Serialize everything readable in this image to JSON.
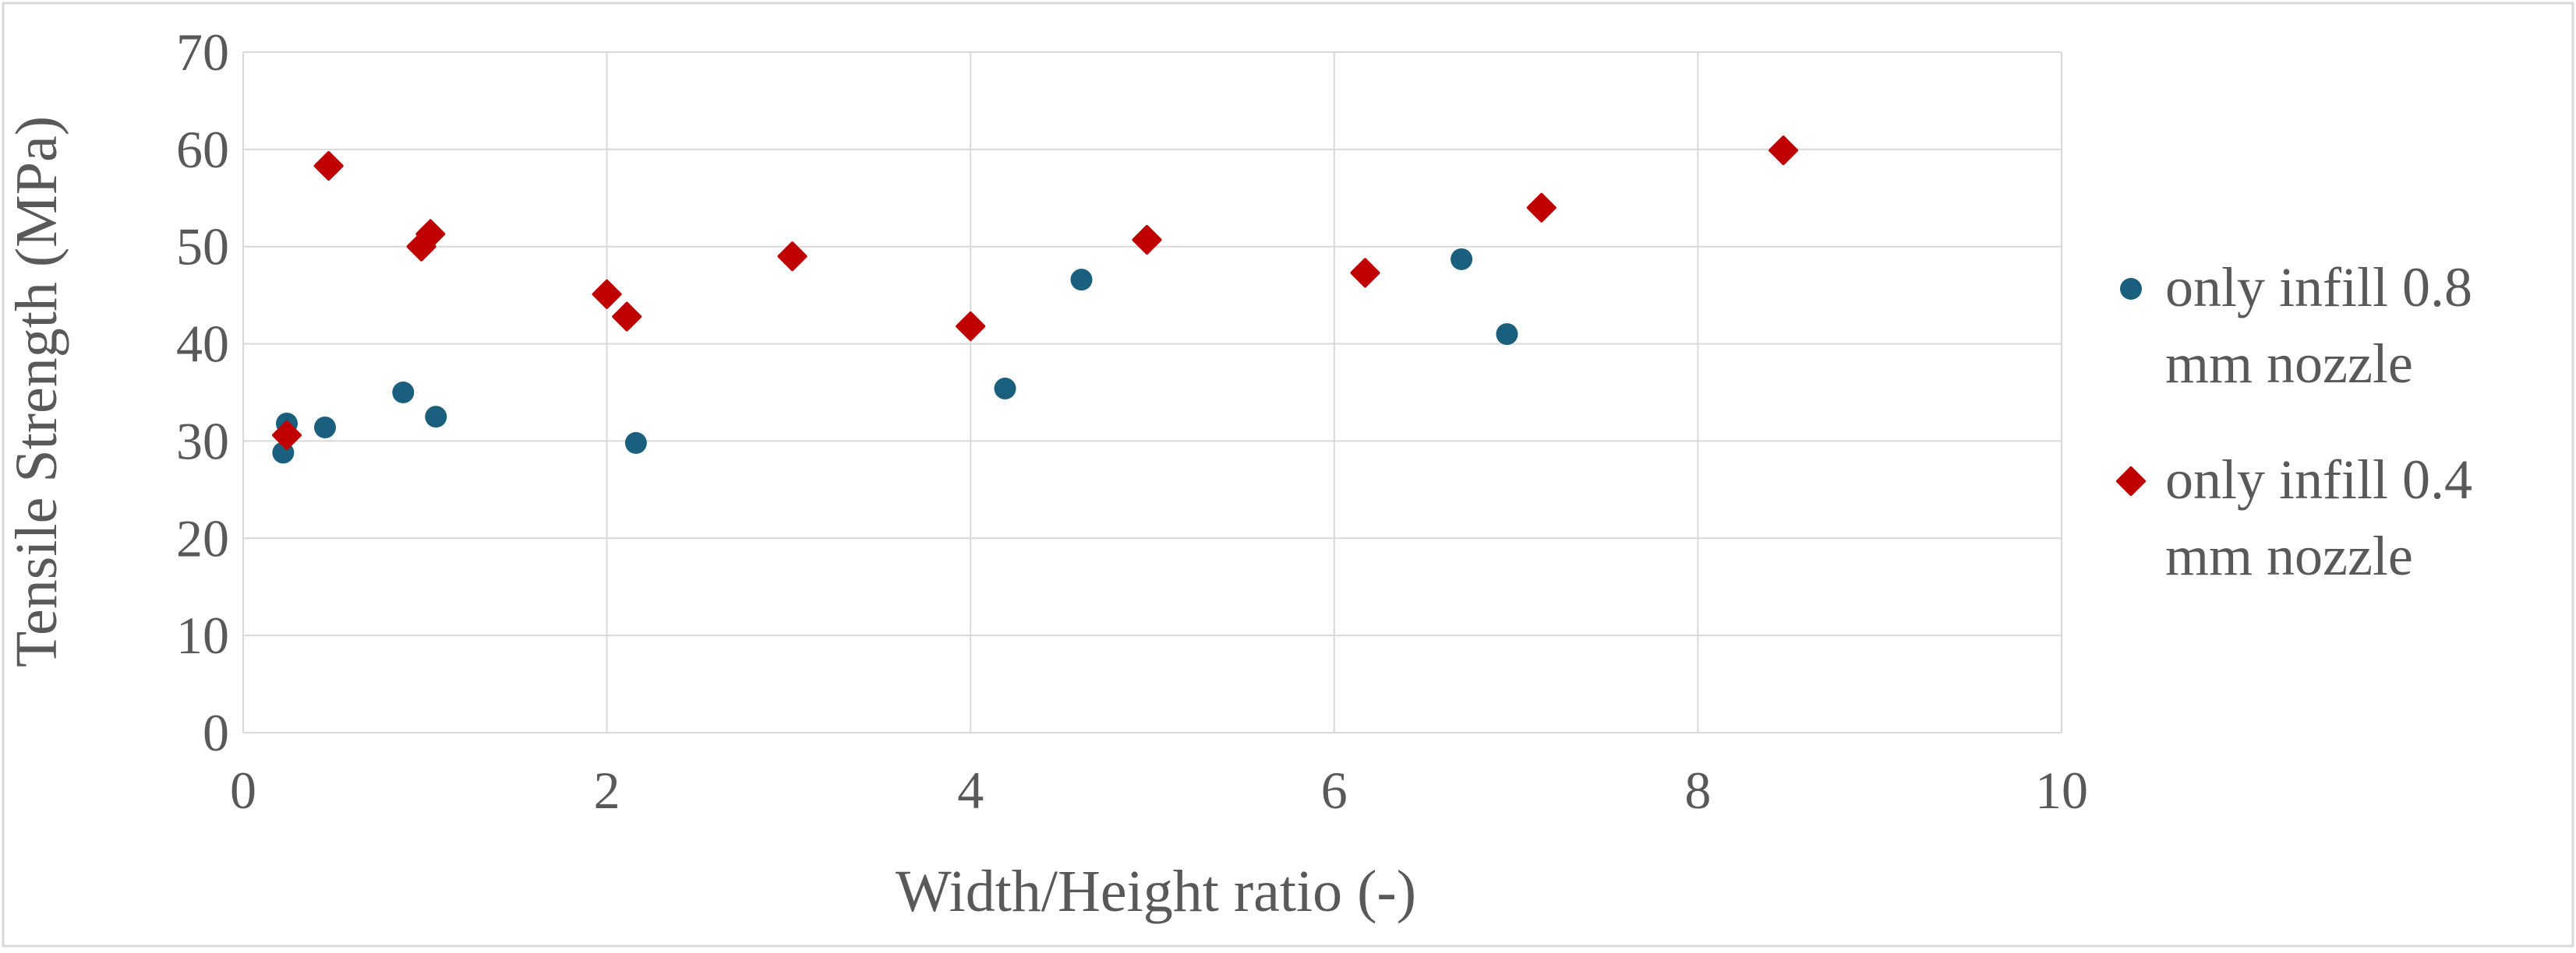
{
  "chart_data": {
    "type": "scatter",
    "title": "",
    "xlabel": "Width/Height ratio (-)",
    "ylabel": "Tensile Strength (MPa)",
    "xlim": [
      0,
      10
    ],
    "ylim": [
      0,
      70
    ],
    "x_ticks": [
      0,
      2,
      4,
      6,
      8,
      10
    ],
    "y_ticks": [
      0,
      10,
      20,
      30,
      40,
      50,
      60,
      70
    ],
    "x_tick_labels": [
      "0",
      "2",
      "4",
      "6",
      "8",
      "10"
    ],
    "y_tick_labels": [
      "0",
      "10",
      "20",
      "30",
      "40",
      "50",
      "60",
      "70"
    ],
    "grid": true,
    "legend_position": "right",
    "series": [
      {
        "name": "only infill 0.8 mm nozzle",
        "legend_lines": [
          "only infill 0.8",
          "mm nozzle"
        ],
        "color": "#1b5f7f",
        "marker": "circle",
        "points": [
          {
            "x": 0.22,
            "y": 28.8
          },
          {
            "x": 0.24,
            "y": 31.8
          },
          {
            "x": 0.45,
            "y": 31.4
          },
          {
            "x": 0.88,
            "y": 35.0
          },
          {
            "x": 1.06,
            "y": 32.5
          },
          {
            "x": 2.16,
            "y": 29.8
          },
          {
            "x": 4.19,
            "y": 35.4
          },
          {
            "x": 4.61,
            "y": 46.6
          },
          {
            "x": 6.7,
            "y": 48.7
          },
          {
            "x": 6.95,
            "y": 41.0
          }
        ]
      },
      {
        "name": "only infill 0.4 mm nozzle",
        "legend_lines": [
          "only infill 0.4",
          "mm nozzle"
        ],
        "color": "#c00000",
        "marker": "diamond",
        "points": [
          {
            "x": 0.24,
            "y": 30.6
          },
          {
            "x": 0.47,
            "y": 58.3
          },
          {
            "x": 0.98,
            "y": 50.0
          },
          {
            "x": 1.03,
            "y": 51.3
          },
          {
            "x": 2.0,
            "y": 45.1
          },
          {
            "x": 2.11,
            "y": 42.8
          },
          {
            "x": 3.02,
            "y": 49.0
          },
          {
            "x": 4.0,
            "y": 41.8
          },
          {
            "x": 4.97,
            "y": 50.7
          },
          {
            "x": 6.17,
            "y": 47.3
          },
          {
            "x": 7.14,
            "y": 54.0
          },
          {
            "x": 8.47,
            "y": 59.9
          }
        ]
      }
    ]
  }
}
